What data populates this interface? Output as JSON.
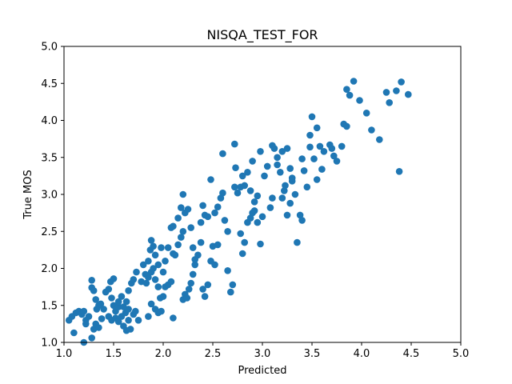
{
  "chart_data": {
    "type": "scatter",
    "title": "NISQA_TEST_FOR",
    "xlabel": "Predicted",
    "ylabel": "True MOS",
    "xlim": [
      1.0,
      5.0
    ],
    "ylim": [
      1.0,
      5.0
    ],
    "xticks": [
      "1.0",
      "1.5",
      "2.0",
      "2.5",
      "3.0",
      "3.5",
      "4.0",
      "4.5",
      "5.0"
    ],
    "yticks": [
      "1.0",
      "1.5",
      "2.0",
      "2.5",
      "3.0",
      "3.5",
      "4.0",
      "4.5",
      "5.0"
    ],
    "grid": false,
    "marker_color": "#1f77b4",
    "points": [
      [
        1.05,
        1.3
      ],
      [
        1.08,
        1.35
      ],
      [
        1.12,
        1.4
      ],
      [
        1.15,
        1.42
      ],
      [
        1.18,
        1.38
      ],
      [
        1.2,
        1.42
      ],
      [
        1.22,
        1.3
      ],
      [
        1.25,
        1.35
      ],
      [
        1.1,
        1.13
      ],
      [
        1.2,
        1.0
      ],
      [
        1.22,
        1.25
      ],
      [
        1.28,
        1.06
      ],
      [
        1.3,
        1.18
      ],
      [
        1.32,
        1.25
      ],
      [
        1.35,
        1.2
      ],
      [
        1.38,
        1.32
      ],
      [
        1.28,
        1.84
      ],
      [
        1.28,
        1.74
      ],
      [
        1.3,
        1.7
      ],
      [
        1.32,
        1.58
      ],
      [
        1.35,
        1.5
      ],
      [
        1.33,
        1.45
      ],
      [
        1.37,
        1.52
      ],
      [
        1.4,
        1.45
      ],
      [
        1.42,
        1.68
      ],
      [
        1.45,
        1.72
      ],
      [
        1.47,
        1.82
      ],
      [
        1.5,
        1.86
      ],
      [
        1.48,
        1.6
      ],
      [
        1.5,
        1.5
      ],
      [
        1.52,
        1.42
      ],
      [
        1.55,
        1.48
      ],
      [
        1.45,
        1.35
      ],
      [
        1.48,
        1.3
      ],
      [
        1.52,
        1.33
      ],
      [
        1.55,
        1.28
      ],
      [
        1.58,
        1.35
      ],
      [
        1.6,
        1.22
      ],
      [
        1.62,
        1.4
      ],
      [
        1.65,
        1.45
      ],
      [
        1.55,
        1.55
      ],
      [
        1.58,
        1.62
      ],
      [
        1.6,
        1.48
      ],
      [
        1.63,
        1.55
      ],
      [
        1.65,
        1.7
      ],
      [
        1.68,
        1.8
      ],
      [
        1.7,
        1.85
      ],
      [
        1.73,
        1.95
      ],
      [
        1.63,
        1.16
      ],
      [
        1.67,
        1.18
      ],
      [
        1.65,
        1.3
      ],
      [
        1.7,
        1.38
      ],
      [
        1.72,
        1.42
      ],
      [
        1.75,
        1.3
      ],
      [
        1.78,
        1.82
      ],
      [
        1.8,
        2.05
      ],
      [
        1.82,
        1.92
      ],
      [
        1.85,
        2.1
      ],
      [
        1.87,
        2.25
      ],
      [
        1.88,
        2.38
      ],
      [
        1.9,
        2.3
      ],
      [
        1.92,
        2.18
      ],
      [
        1.95,
        2.05
      ],
      [
        1.98,
        2.28
      ],
      [
        1.83,
        1.8
      ],
      [
        1.85,
        1.88
      ],
      [
        1.88,
        1.95
      ],
      [
        1.9,
        2.0
      ],
      [
        1.92,
        1.85
      ],
      [
        1.95,
        1.75
      ],
      [
        1.97,
        1.6
      ],
      [
        2.0,
        1.62
      ],
      [
        1.85,
        1.35
      ],
      [
        1.88,
        1.52
      ],
      [
        1.92,
        1.45
      ],
      [
        1.95,
        1.4
      ],
      [
        1.98,
        1.42
      ],
      [
        2.0,
        1.95
      ],
      [
        2.02,
        2.1
      ],
      [
        2.05,
        2.28
      ],
      [
        2.02,
        1.75
      ],
      [
        2.05,
        1.78
      ],
      [
        2.08,
        1.82
      ],
      [
        2.1,
        2.2
      ],
      [
        2.12,
        2.18
      ],
      [
        2.15,
        2.32
      ],
      [
        2.18,
        2.42
      ],
      [
        2.2,
        2.5
      ],
      [
        2.1,
        1.33
      ],
      [
        2.2,
        1.58
      ],
      [
        2.22,
        1.65
      ],
      [
        2.24,
        1.6
      ],
      [
        2.26,
        1.72
      ],
      [
        2.28,
        1.8
      ],
      [
        2.3,
        1.92
      ],
      [
        2.32,
        2.05
      ],
      [
        2.08,
        2.55
      ],
      [
        2.1,
        2.57
      ],
      [
        2.15,
        2.68
      ],
      [
        2.18,
        2.82
      ],
      [
        2.2,
        3.0
      ],
      [
        2.22,
        2.75
      ],
      [
        2.25,
        2.8
      ],
      [
        2.28,
        2.55
      ],
      [
        2.3,
        2.28
      ],
      [
        2.32,
        2.12
      ],
      [
        2.35,
        2.18
      ],
      [
        2.38,
        2.35
      ],
      [
        2.4,
        1.72
      ],
      [
        2.42,
        1.62
      ],
      [
        2.45,
        1.78
      ],
      [
        2.48,
        2.1
      ],
      [
        2.38,
        2.62
      ],
      [
        2.4,
        2.85
      ],
      [
        2.42,
        2.72
      ],
      [
        2.45,
        2.7
      ],
      [
        2.48,
        3.2
      ],
      [
        2.5,
        2.3
      ],
      [
        2.52,
        2.05
      ],
      [
        2.55,
        2.32
      ],
      [
        2.52,
        2.75
      ],
      [
        2.55,
        2.83
      ],
      [
        2.58,
        2.95
      ],
      [
        2.6,
        3.02
      ],
      [
        2.62,
        2.65
      ],
      [
        2.6,
        3.55
      ],
      [
        2.65,
        2.5
      ],
      [
        2.68,
        1.68
      ],
      [
        2.65,
        1.97
      ],
      [
        2.7,
        1.78
      ],
      [
        2.72,
        3.1
      ],
      [
        2.75,
        3.02
      ],
      [
        2.73,
        3.36
      ],
      [
        2.72,
        3.68
      ],
      [
        2.78,
        3.1
      ],
      [
        2.8,
        3.25
      ],
      [
        2.78,
        2.47
      ],
      [
        2.8,
        2.2
      ],
      [
        2.82,
        2.35
      ],
      [
        2.85,
        2.62
      ],
      [
        2.88,
        2.68
      ],
      [
        2.9,
        2.75
      ],
      [
        2.92,
        2.9
      ],
      [
        2.95,
        2.98
      ],
      [
        2.82,
        3.12
      ],
      [
        2.85,
        3.3
      ],
      [
        2.88,
        3.05
      ],
      [
        2.9,
        3.45
      ],
      [
        2.92,
        2.78
      ],
      [
        2.95,
        2.62
      ],
      [
        2.98,
        2.33
      ],
      [
        3.0,
        2.7
      ],
      [
        2.98,
        3.58
      ],
      [
        3.02,
        3.25
      ],
      [
        3.05,
        3.38
      ],
      [
        3.08,
        2.82
      ],
      [
        3.1,
        2.95
      ],
      [
        3.12,
        3.62
      ],
      [
        3.1,
        3.66
      ],
      [
        3.15,
        3.5
      ],
      [
        3.15,
        3.4
      ],
      [
        3.18,
        3.3
      ],
      [
        3.2,
        3.58
      ],
      [
        3.22,
        3.05
      ],
      [
        3.25,
        3.62
      ],
      [
        3.25,
        2.72
      ],
      [
        3.28,
        2.88
      ],
      [
        3.3,
        3.18
      ],
      [
        3.2,
        2.95
      ],
      [
        3.23,
        3.12
      ],
      [
        3.28,
        3.35
      ],
      [
        3.3,
        3.22
      ],
      [
        3.33,
        3.0
      ],
      [
        3.35,
        2.35
      ],
      [
        3.38,
        2.72
      ],
      [
        3.4,
        2.65
      ],
      [
        3.4,
        3.48
      ],
      [
        3.42,
        3.32
      ],
      [
        3.45,
        3.1
      ],
      [
        3.48,
        3.64
      ],
      [
        3.48,
        3.8
      ],
      [
        3.5,
        4.05
      ],
      [
        3.52,
        3.48
      ],
      [
        3.55,
        3.2
      ],
      [
        3.55,
        3.9
      ],
      [
        3.58,
        3.65
      ],
      [
        3.6,
        3.34
      ],
      [
        3.62,
        3.58
      ],
      [
        3.68,
        3.67
      ],
      [
        3.7,
        3.62
      ],
      [
        3.72,
        3.52
      ],
      [
        3.75,
        3.45
      ],
      [
        3.8,
        3.65
      ],
      [
        3.82,
        3.95
      ],
      [
        3.85,
        3.92
      ],
      [
        3.85,
        4.42
      ],
      [
        3.88,
        4.34
      ],
      [
        3.92,
        4.53
      ],
      [
        3.98,
        4.27
      ],
      [
        4.05,
        4.1
      ],
      [
        4.1,
        3.87
      ],
      [
        4.18,
        3.74
      ],
      [
        4.25,
        4.38
      ],
      [
        4.28,
        4.24
      ],
      [
        4.35,
        4.4
      ],
      [
        4.38,
        3.31
      ],
      [
        4.4,
        4.52
      ],
      [
        4.47,
        4.35
      ]
    ]
  }
}
